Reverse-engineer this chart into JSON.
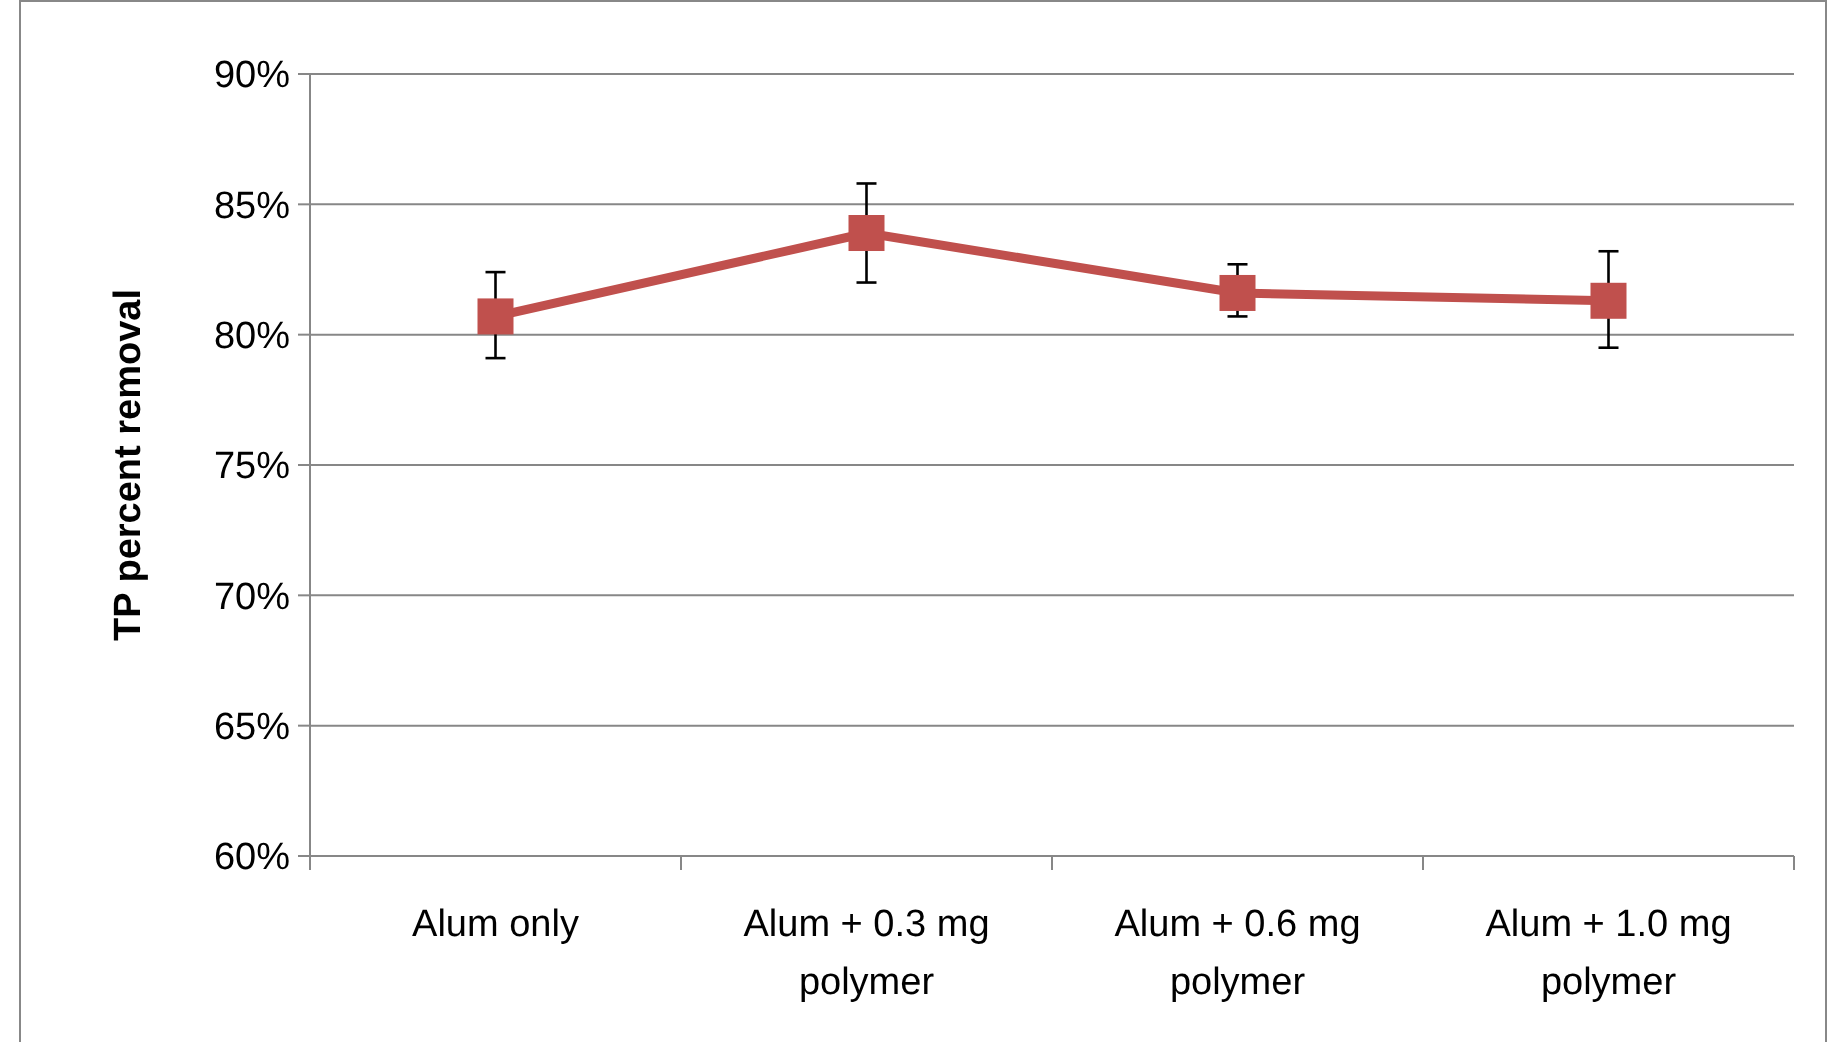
{
  "chart_data": {
    "type": "line",
    "ylabel": "TP percent removal",
    "categories": [
      "Alum only",
      "Alum + 0.3 mg polymer",
      "Alum + 0.6 mg polymer",
      "Alum + 1.0 mg polymer"
    ],
    "series": [
      {
        "color": "#c0504d",
        "values": [
          80.7,
          83.9,
          81.6,
          81.3
        ],
        "errors": [
          [
            79.1,
            82.4
          ],
          [
            82,
            85.8
          ],
          [
            80.7,
            82.7
          ],
          [
            79.5,
            83.2
          ]
        ]
      }
    ],
    "ylim": [
      60,
      90
    ],
    "yticks": [
      {
        "value": 60,
        "label": "60%"
      },
      {
        "value": 65,
        "label": "65%"
      },
      {
        "value": 70,
        "label": "70%"
      },
      {
        "value": 75,
        "label": "75%"
      },
      {
        "value": 80,
        "label": "80%"
      },
      {
        "value": 85,
        "label": "85%"
      },
      {
        "value": 90,
        "label": "90%"
      }
    ],
    "grid": "y",
    "marker": "square",
    "line_style": "solid"
  }
}
